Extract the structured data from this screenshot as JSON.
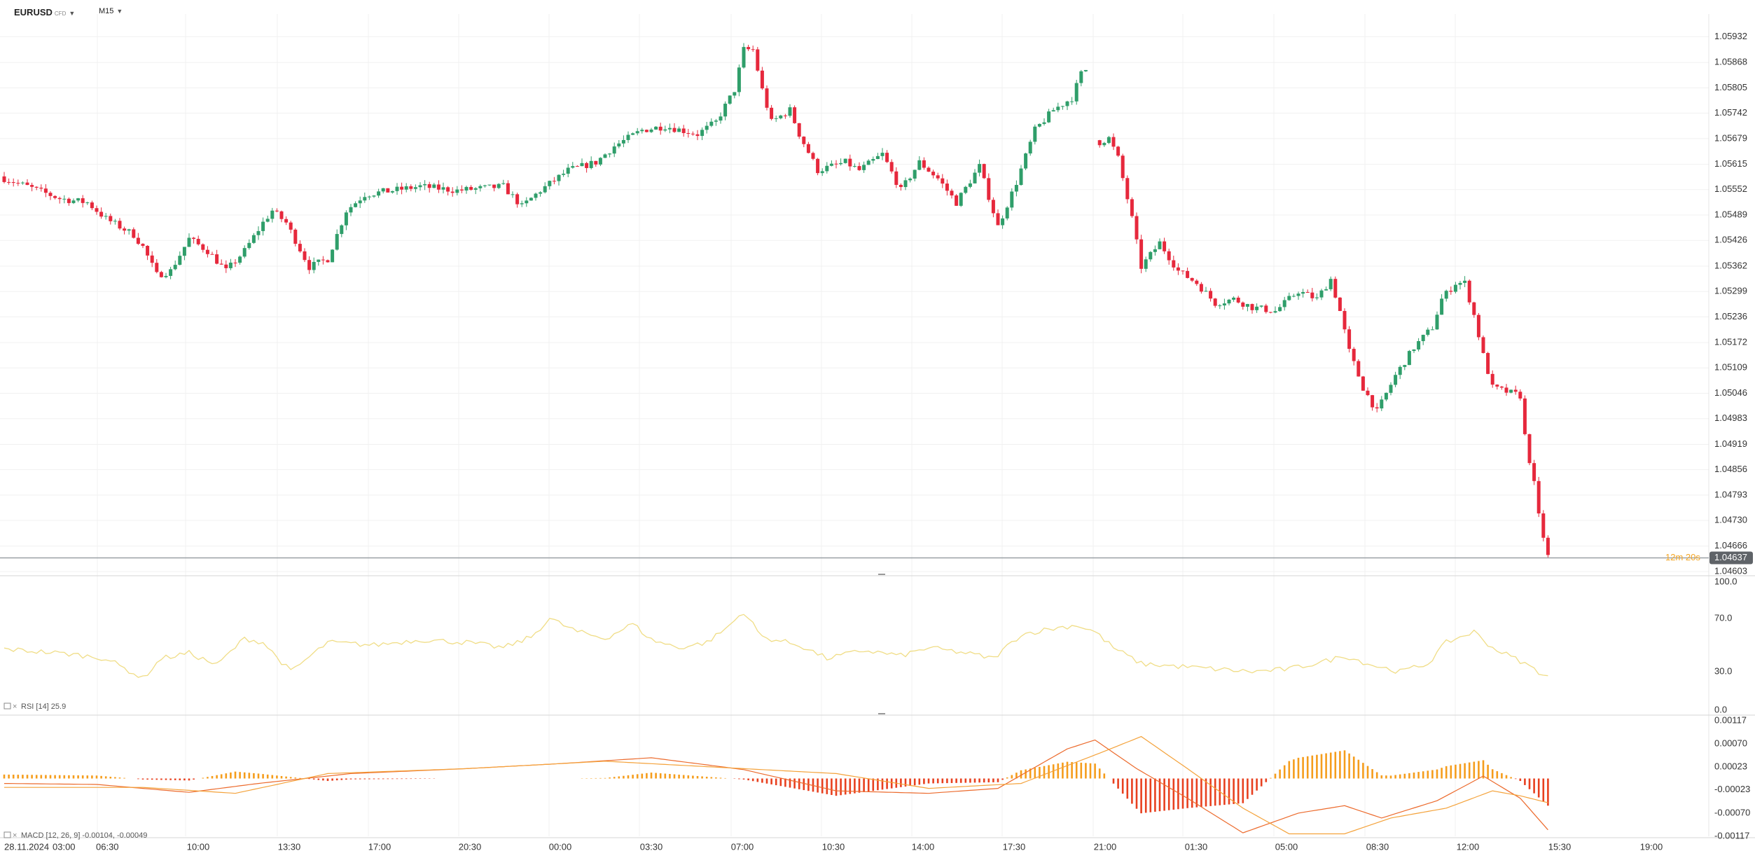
{
  "toolbar": {
    "symbol": "EURUSD",
    "symbol_tag": "CFD",
    "timeframe": "M15"
  },
  "colors": {
    "up": "#2f9e6a",
    "down": "#e6283c",
    "rsi": "#f0dd86",
    "macd_line": "#ec6a2c",
    "signal_line": "#f4a23a",
    "hist_pos": "#f59d1c",
    "hist_neg": "#e8401f",
    "price_tag": "#5f6368",
    "countdown": "#f5a623"
  },
  "price_axis": {
    "ticks": [
      "1.05932",
      "1.05868",
      "1.05805",
      "1.05742",
      "1.05679",
      "1.05615",
      "1.05552",
      "1.05489",
      "1.05426",
      "1.05362",
      "1.05299",
      "1.05236",
      "1.05172",
      "1.05109",
      "1.05046",
      "1.04983",
      "1.04919",
      "1.04856",
      "1.04793",
      "1.04730",
      "1.04666",
      "1.04603"
    ],
    "current_price": "1.04637",
    "countdown": "12m 20s"
  },
  "rsi_panel": {
    "label": "RSI",
    "params": "[14]",
    "value": "25.9",
    "ticks": [
      "100.0",
      "70.0",
      "30.0",
      "0.0"
    ]
  },
  "macd_panel": {
    "label": "MACD",
    "params": "[12, 26, 9]",
    "values": "-0.00104, -0.00049",
    "ticks": [
      "0.00117",
      "0.00070",
      "0.00023",
      "-0.00023",
      "-0.00070",
      "-0.00117"
    ]
  },
  "time_axis": {
    "ticks": [
      "28.11.2024",
      "03:00",
      "06:30",
      "10:00",
      "13:30",
      "17:00",
      "20:30",
      "00:00",
      "03:30",
      "07:00",
      "10:30",
      "14:00",
      "17:30",
      "21:00",
      "01:30",
      "05:00",
      "08:30",
      "12:00",
      "15:30",
      "19:00"
    ]
  },
  "chart_data": {
    "type": "candlestick",
    "symbol": "EURUSD",
    "timeframe": "M15",
    "ylim": [
      1.04603,
      1.05932
    ],
    "anchor_path": [
      [
        0,
        1.0558
      ],
      [
        5,
        1.0556
      ],
      [
        12,
        1.0553
      ],
      [
        18,
        1.0552
      ],
      [
        22,
        1.0548
      ],
      [
        28,
        1.0544
      ],
      [
        30,
        1.0541
      ],
      [
        33,
        1.0534
      ],
      [
        36,
        1.0535
      ],
      [
        40,
        1.0543
      ],
      [
        44,
        1.054
      ],
      [
        48,
        1.0535
      ],
      [
        52,
        1.054
      ],
      [
        56,
        1.0547
      ],
      [
        58,
        1.055
      ],
      [
        61,
        1.0547
      ],
      [
        66,
        1.0536
      ],
      [
        70,
        1.0538
      ],
      [
        74,
        1.055
      ],
      [
        78,
        1.0554
      ],
      [
        84,
        1.0555
      ],
      [
        90,
        1.0556
      ],
      [
        98,
        1.0555
      ],
      [
        108,
        1.0556
      ],
      [
        112,
        1.0551
      ],
      [
        116,
        1.0555
      ],
      [
        122,
        1.056
      ],
      [
        128,
        1.0562
      ],
      [
        132,
        1.0566
      ],
      [
        138,
        1.057
      ],
      [
        143,
        1.0571
      ],
      [
        150,
        1.0569
      ],
      [
        154,
        1.0572
      ],
      [
        158,
        1.058
      ],
      [
        160,
        1.059
      ],
      [
        162,
        1.059
      ],
      [
        164,
        1.058
      ],
      [
        166,
        1.0572
      ],
      [
        170,
        1.0575
      ],
      [
        172,
        1.0569
      ],
      [
        176,
        1.056
      ],
      [
        182,
        1.0562
      ],
      [
        185,
        1.056
      ],
      [
        190,
        1.0564
      ],
      [
        194,
        1.0555
      ],
      [
        198,
        1.0562
      ],
      [
        202,
        1.0558
      ],
      [
        206,
        1.0552
      ],
      [
        211,
        1.0561
      ],
      [
        215,
        1.0546
      ],
      [
        219,
        1.0557
      ],
      [
        223,
        1.057
      ],
      [
        227,
        1.0575
      ],
      [
        231,
        1.0578
      ],
      [
        233,
        1.0584
      ],
      [
        234,
        1.0585
      ]
    ],
    "anchor_path_2": [
      [
        237,
        1.0567
      ],
      [
        239,
        1.0568
      ],
      [
        241,
        1.0563
      ],
      [
        244,
        1.0548
      ],
      [
        246,
        1.0536
      ],
      [
        250,
        1.0542
      ],
      [
        254,
        1.0535
      ],
      [
        258,
        1.0532
      ],
      [
        262,
        1.0527
      ],
      [
        266,
        1.0528
      ],
      [
        270,
        1.0526
      ],
      [
        275,
        1.0525
      ],
      [
        280,
        1.053
      ],
      [
        284,
        1.0528
      ],
      [
        287,
        1.0533
      ],
      [
        289,
        1.0525
      ],
      [
        291,
        1.0515
      ],
      [
        294,
        1.0506
      ],
      [
        297,
        1.05
      ],
      [
        301,
        1.0509
      ],
      [
        305,
        1.0516
      ],
      [
        309,
        1.0521
      ],
      [
        311,
        1.0528
      ],
      [
        314,
        1.0532
      ],
      [
        316,
        1.0532
      ],
      [
        318,
        1.0524
      ],
      [
        320,
        1.0514
      ],
      [
        322,
        1.0506
      ],
      [
        325,
        1.0505
      ],
      [
        328,
        1.0504
      ],
      [
        329,
        1.0494
      ],
      [
        331,
        1.0482
      ],
      [
        332,
        1.0474
      ],
      [
        334,
        1.0464
      ]
    ],
    "rsi_path": [
      [
        0,
        47
      ],
      [
        8,
        45
      ],
      [
        15,
        43
      ],
      [
        22,
        40
      ],
      [
        30,
        25
      ],
      [
        34,
        40
      ],
      [
        40,
        44
      ],
      [
        46,
        35
      ],
      [
        52,
        55
      ],
      [
        56,
        52
      ],
      [
        62,
        30
      ],
      [
        70,
        52
      ],
      [
        80,
        50
      ],
      [
        90,
        54
      ],
      [
        100,
        52
      ],
      [
        108,
        48
      ],
      [
        114,
        56
      ],
      [
        118,
        70
      ],
      [
        124,
        60
      ],
      [
        130,
        55
      ],
      [
        136,
        66
      ],
      [
        140,
        54
      ],
      [
        146,
        48
      ],
      [
        152,
        52
      ],
      [
        156,
        62
      ],
      [
        160,
        75
      ],
      [
        164,
        56
      ],
      [
        172,
        50
      ],
      [
        178,
        40
      ],
      [
        186,
        46
      ],
      [
        194,
        42
      ],
      [
        200,
        48
      ],
      [
        208,
        44
      ],
      [
        214,
        40
      ],
      [
        220,
        58
      ],
      [
        226,
        62
      ],
      [
        232,
        65
      ],
      [
        236,
        60
      ],
      [
        240,
        48
      ],
      [
        246,
        36
      ],
      [
        254,
        34
      ],
      [
        262,
        32
      ],
      [
        270,
        30
      ],
      [
        278,
        32
      ],
      [
        286,
        38
      ],
      [
        290,
        42
      ],
      [
        296,
        35
      ],
      [
        302,
        30
      ],
      [
        308,
        36
      ],
      [
        312,
        52
      ],
      [
        318,
        60
      ],
      [
        322,
        48
      ],
      [
        328,
        38
      ],
      [
        334,
        26
      ]
    ],
    "macd_path": [
      [
        0,
        -0.0001
      ],
      [
        20,
        -0.00012
      ],
      [
        40,
        -0.00028
      ],
      [
        55,
        -0.0001
      ],
      [
        75,
        0.0001
      ],
      [
        100,
        0.0002
      ],
      [
        120,
        0.0003
      ],
      [
        140,
        0.00042
      ],
      [
        160,
        0.00018
      ],
      [
        180,
        -0.00025
      ],
      [
        200,
        -0.0003
      ],
      [
        215,
        -0.0002
      ],
      [
        230,
        0.0006
      ],
      [
        236,
        0.00078
      ],
      [
        245,
        0.0002
      ],
      [
        256,
        -0.0004
      ],
      [
        268,
        -0.0011
      ],
      [
        280,
        -0.0007
      ],
      [
        290,
        -0.00055
      ],
      [
        298,
        -0.0008
      ],
      [
        310,
        -0.00045
      ],
      [
        320,
        5e-05
      ],
      [
        328,
        -0.0004
      ],
      [
        334,
        -0.00104
      ]
    ],
    "signal_path": [
      [
        0,
        -0.00018
      ],
      [
        30,
        -0.00018
      ],
      [
        50,
        -0.0003
      ],
      [
        70,
        0.0001
      ],
      [
        100,
        0.0002
      ],
      [
        130,
        0.00035
      ],
      [
        160,
        0.0002
      ],
      [
        180,
        0.0001
      ],
      [
        200,
        -0.0002
      ],
      [
        220,
        -0.0001
      ],
      [
        238,
        0.00055
      ],
      [
        246,
        0.00085
      ],
      [
        256,
        0.0002
      ],
      [
        268,
        -0.0006
      ],
      [
        278,
        -0.00112
      ],
      [
        290,
        -0.00112
      ],
      [
        300,
        -0.0008
      ],
      [
        312,
        -0.0006
      ],
      [
        322,
        -0.00025
      ],
      [
        328,
        -0.00035
      ],
      [
        334,
        -0.00049
      ]
    ]
  }
}
